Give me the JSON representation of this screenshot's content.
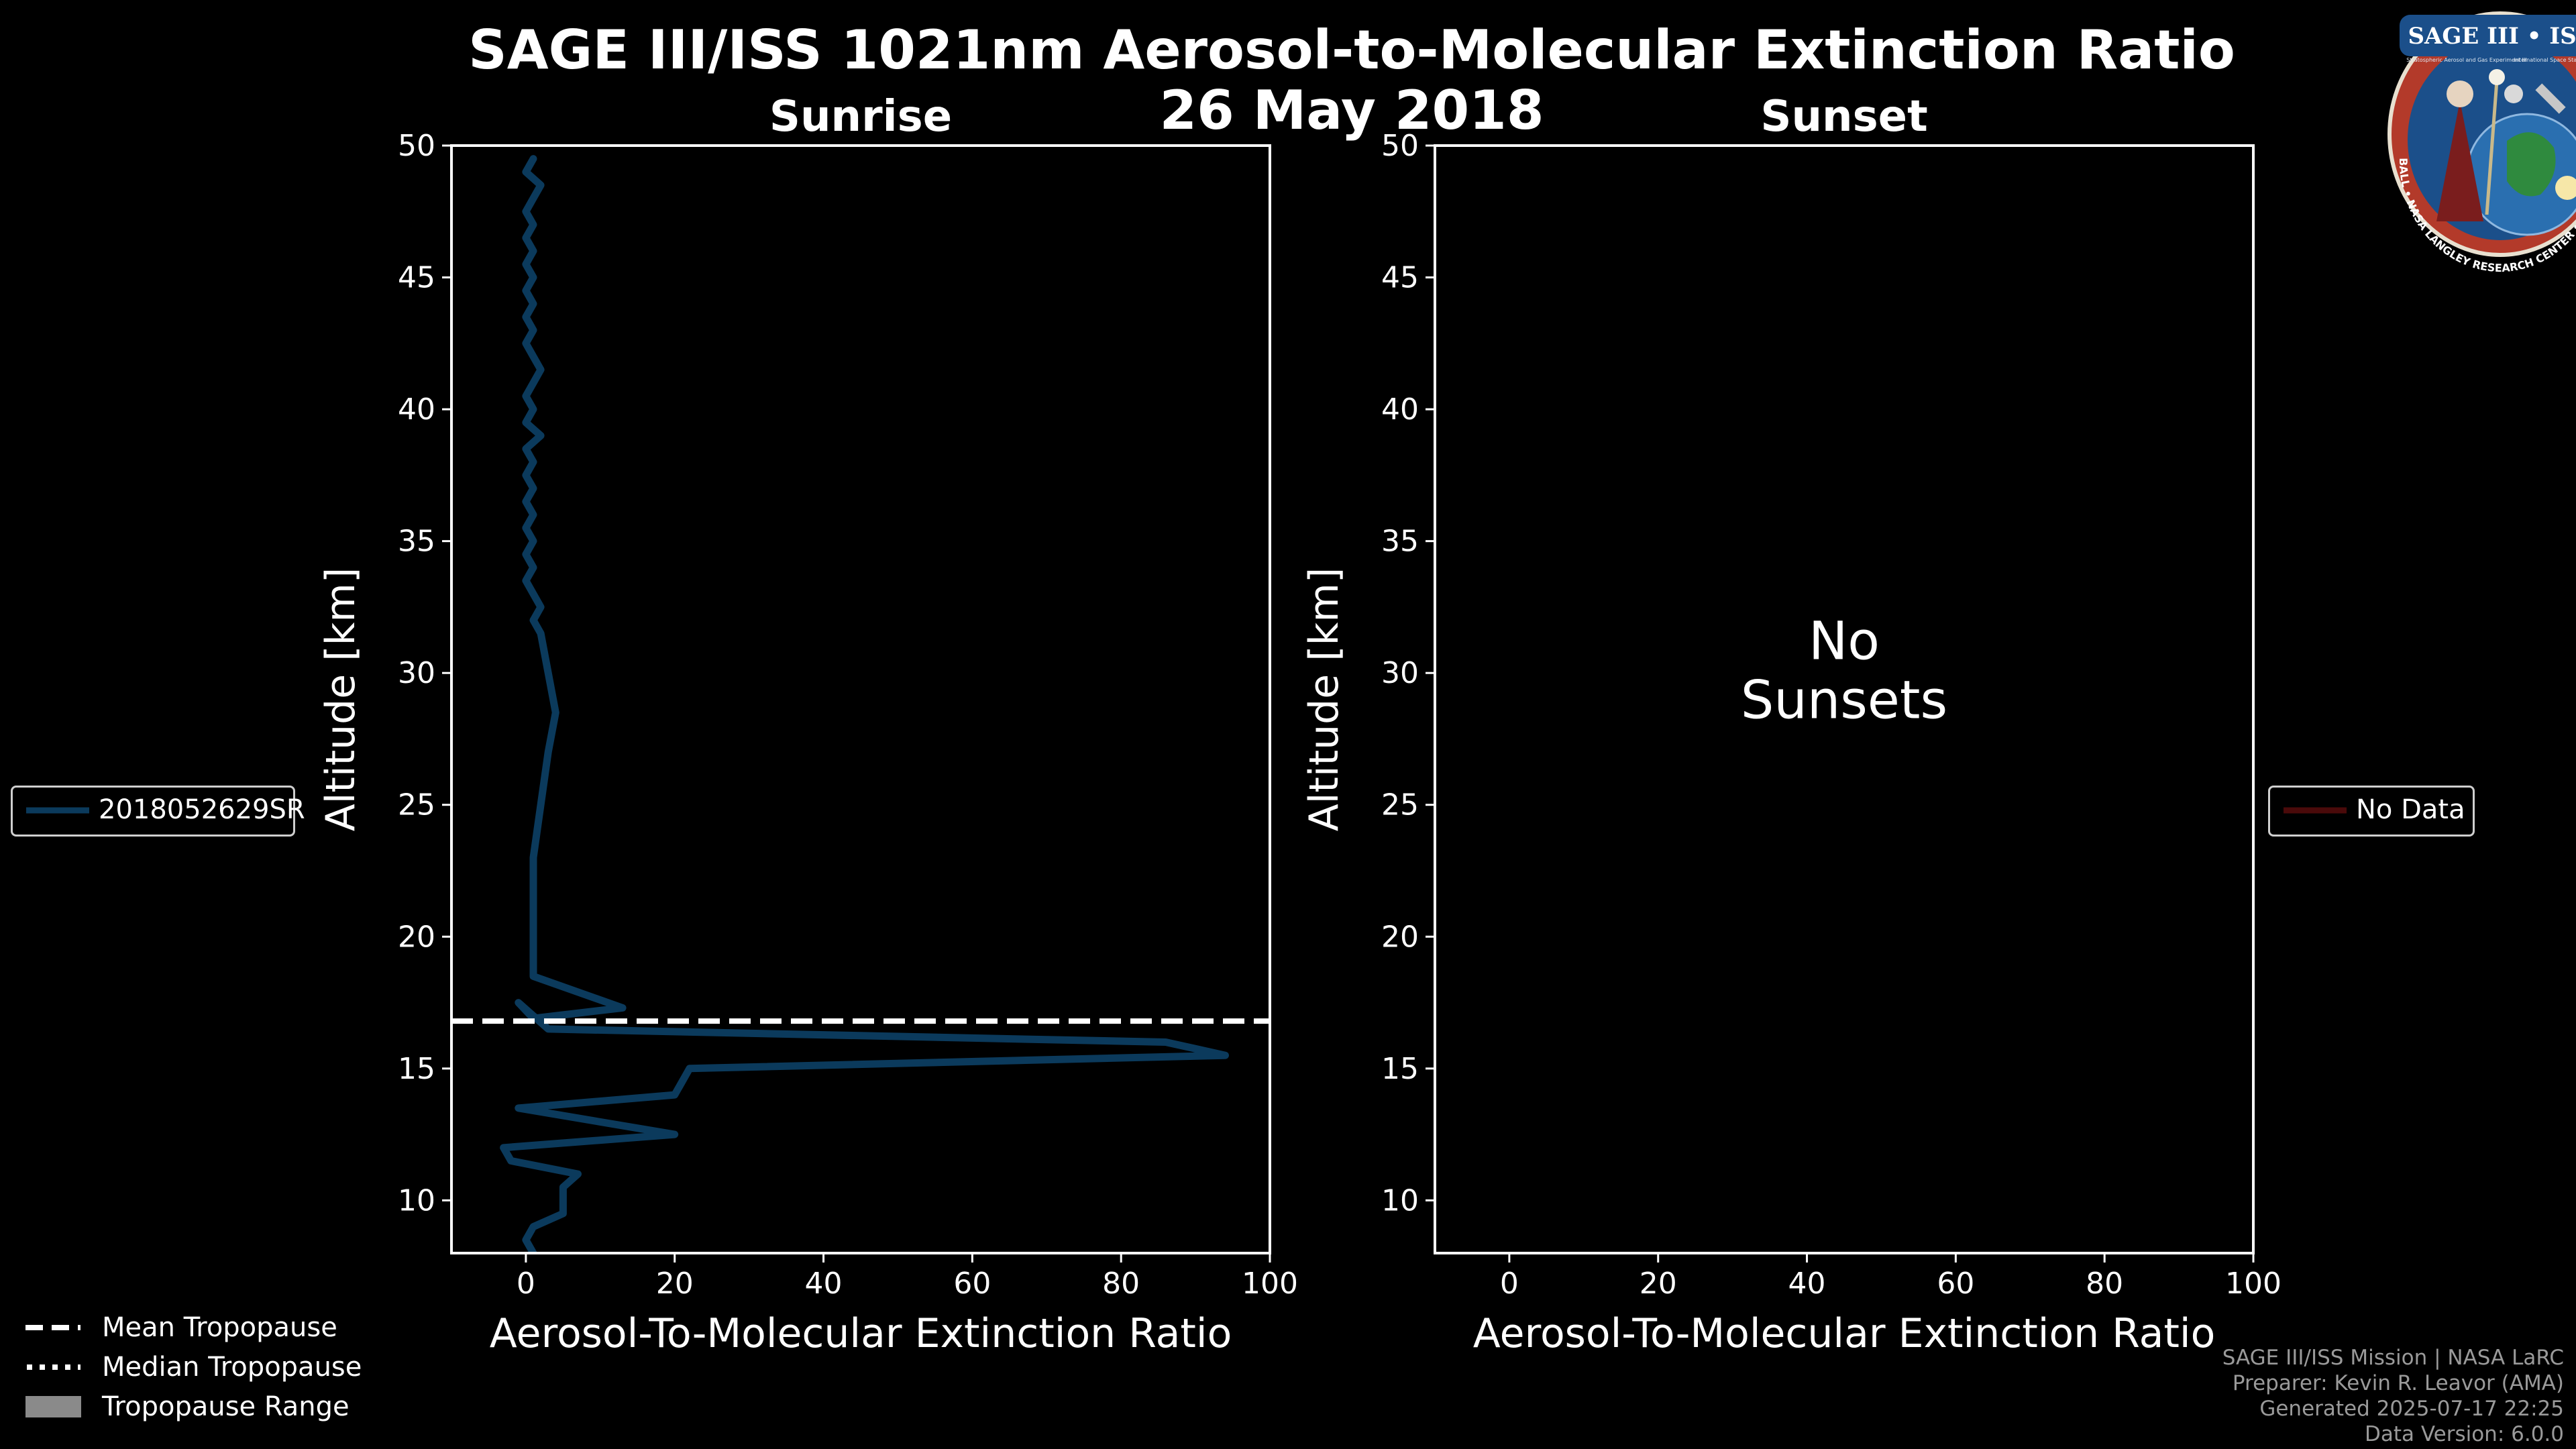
{
  "figure": {
    "title_line1": "SAGE III/ISS 1021nm Aerosol-to-Molecular Extinction Ratio",
    "title_line2": "26 May 2018"
  },
  "logo": {
    "title": "SAGE III • ISS",
    "subtitle": "Stratospheric Aerosol and Gas Experiment III",
    "subtitle2": "International Space Station",
    "ring_text": "BALL • NASA LANGLEY RESEARCH CENTER • TAS-I • ESA"
  },
  "chart_data": [
    {
      "type": "line",
      "panel": "sunrise",
      "title": "Sunrise",
      "xlabel": "Aerosol-To-Molecular Extinction Ratio",
      "ylabel": "Altitude [km]",
      "xlim": [
        -10,
        100
      ],
      "ylim": [
        8,
        50
      ],
      "xticks": [
        0,
        20,
        40,
        60,
        80,
        100
      ],
      "yticks": [
        10,
        15,
        20,
        25,
        30,
        35,
        40,
        45,
        50
      ],
      "series": [
        {
          "name": "2018052629SR",
          "color": "#0b3a5c",
          "x": [
            1,
            0,
            2,
            1,
            0,
            1,
            0,
            1,
            0,
            1,
            0,
            1,
            0,
            1,
            0,
            1,
            2,
            1,
            0,
            1,
            0,
            2,
            0,
            1,
            0,
            1,
            0,
            1,
            0,
            1,
            0,
            1,
            0,
            1,
            2,
            1,
            2,
            3,
            4,
            3,
            2,
            1,
            1,
            1,
            13,
            1,
            -1,
            3,
            86,
            94,
            22,
            21,
            20,
            -1,
            20,
            -3,
            -2,
            7,
            5,
            5,
            1,
            0,
            1
          ],
          "y": [
            49.5,
            49,
            48.5,
            48,
            47.5,
            47,
            46.5,
            46,
            45.5,
            45,
            44.5,
            44,
            43.5,
            43,
            42.5,
            42,
            41.5,
            41,
            40.5,
            40,
            39.5,
            39,
            38.5,
            38,
            37.5,
            37,
            36.5,
            36,
            35.5,
            35,
            34.5,
            34,
            33.5,
            33,
            32.5,
            32,
            31.5,
            30,
            28.5,
            27,
            25,
            23,
            21,
            18.5,
            17.3,
            16.9,
            17.5,
            16.5,
            16,
            15.5,
            15,
            14.5,
            14,
            13.5,
            12.5,
            12,
            11.5,
            11,
            10.5,
            9.5,
            9,
            8.5,
            8
          ]
        }
      ],
      "hlines": [
        {
          "name": "Mean Tropopause",
          "y": 16.8,
          "style": "dashed"
        }
      ],
      "annotation": "",
      "legend": {
        "label": "2018052629SR",
        "placement": "left-outside"
      }
    },
    {
      "type": "line",
      "panel": "sunset",
      "title": "Sunset",
      "xlabel": "Aerosol-To-Molecular Extinction Ratio",
      "ylabel": "Altitude [km]",
      "xlim": [
        -10,
        100
      ],
      "ylim": [
        8,
        50
      ],
      "xticks": [
        0,
        20,
        40,
        60,
        80,
        100
      ],
      "yticks": [
        10,
        15,
        20,
        25,
        30,
        35,
        40,
        45,
        50
      ],
      "series": [],
      "hlines": [],
      "annotation_line1": "No",
      "annotation_line2": "Sunsets",
      "legend": {
        "label": "No Data",
        "color": "#4a0a0a",
        "placement": "right-outside"
      }
    }
  ],
  "bottom_legend": {
    "items": [
      {
        "label": "Mean Tropopause",
        "style": "dashed"
      },
      {
        "label": "Median Tropopause",
        "style": "dotted"
      },
      {
        "label": "Tropopause Range",
        "style": "patch"
      }
    ]
  },
  "credits": {
    "line1": "SAGE III/ISS Mission | NASA LaRC",
    "line2": "Preparer: Kevin R. Leavor (AMA)",
    "line3": "Generated 2025-07-17 22:25",
    "line4": "Data Version: 6.0.0"
  }
}
